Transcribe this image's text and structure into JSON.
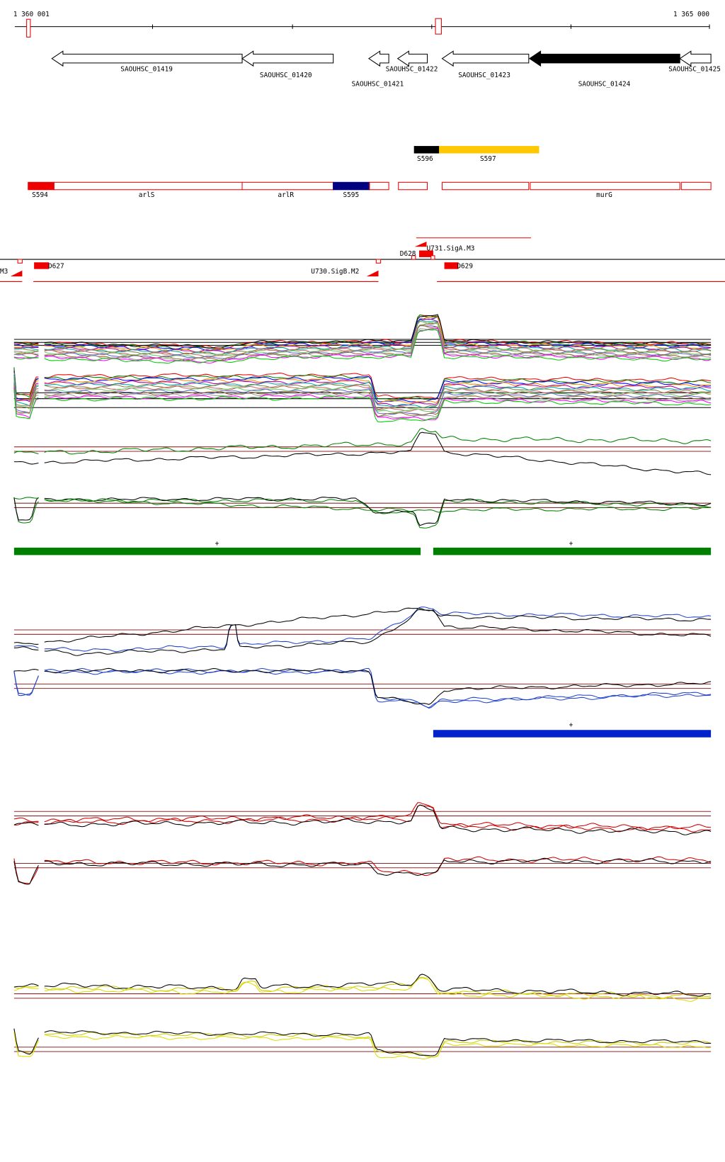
{
  "ruler": {
    "start": "1 360 001",
    "end": "1 365 000"
  },
  "genes": [
    "SAOUHSC_01419",
    "SAOUHSC_01420",
    "SAOUHSC_01421",
    "SAOUHSC_01422",
    "SAOUHSC_01423",
    "SAOUHSC_01424",
    "SAOUHSC_01425"
  ],
  "segments_top": [
    "S596",
    "S597"
  ],
  "segments": [
    "S594",
    "arlS",
    "arlR",
    "S595",
    "murG"
  ],
  "features": [
    "M3",
    "D627",
    "D628",
    "U731.SigA.M3",
    "U730.SigB.M2",
    "D629"
  ],
  "plus_marks": [
    "+",
    "+",
    "+"
  ]
}
